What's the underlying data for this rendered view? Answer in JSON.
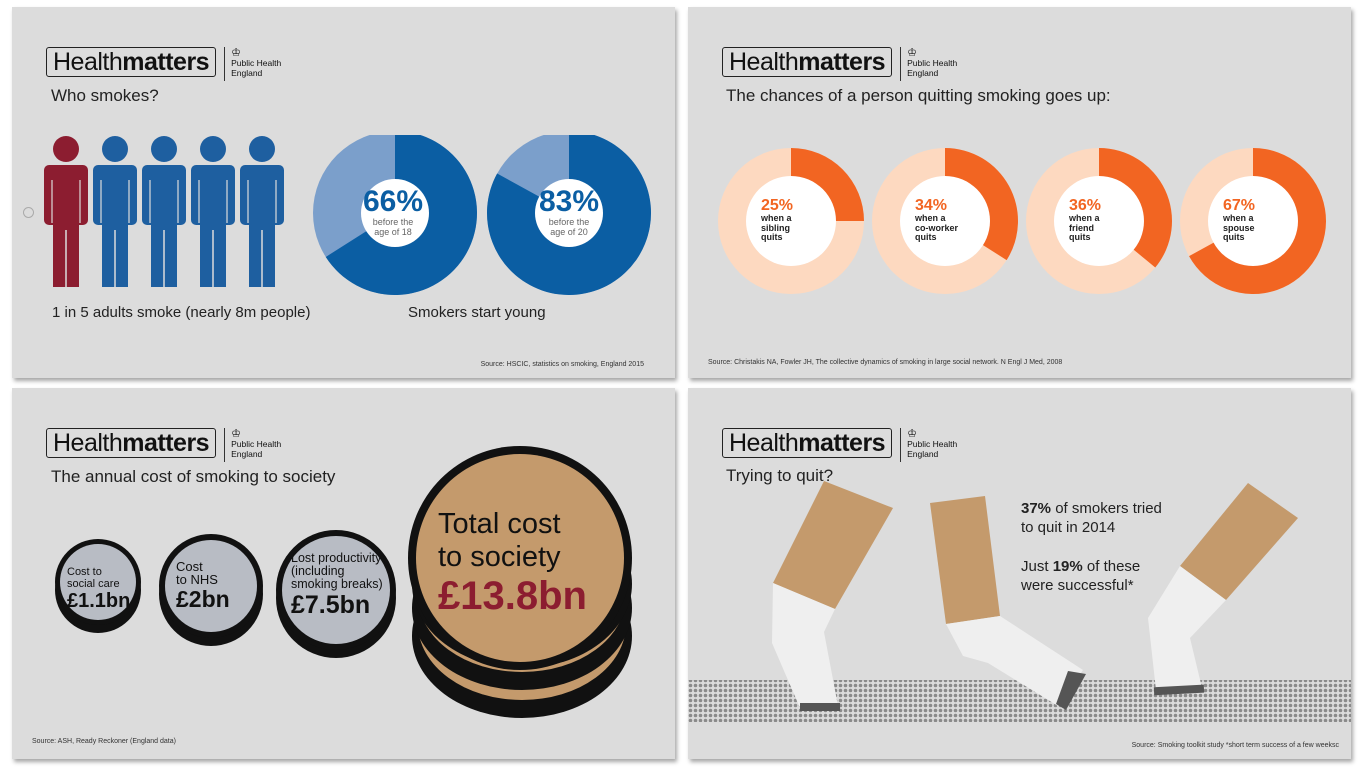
{
  "brand": {
    "health": "Health",
    "matters": "matters",
    "org_line1": "Public Health",
    "org_line2": "England",
    "crest_glyph": "♔"
  },
  "panel1": {
    "title": "Who smokes?",
    "adults_caption": "1 in 5 adults smoke (nearly 8m people)",
    "young_caption": "Smokers start young",
    "source": "Source: HSCIC, statistics on smoking, England 2015",
    "people": [
      {
        "color": "#8c1d30",
        "smoker": true
      },
      {
        "color": "#1e5fa0",
        "smoker": false
      },
      {
        "color": "#1e5fa0",
        "smoker": false
      },
      {
        "color": "#1e5fa0",
        "smoker": false
      },
      {
        "color": "#1e5fa0",
        "smoker": false
      }
    ],
    "donuts": [
      {
        "value": 66,
        "pct": "66%",
        "line1": "before the",
        "line2": "age of 18"
      },
      {
        "value": 83,
        "pct": "83%",
        "line1": "before the",
        "line2": "age of 20"
      }
    ],
    "colors": {
      "dark": "#0b5ea3",
      "light": "#7b9fcb"
    }
  },
  "panel2": {
    "title": "The chances of a person quitting smoking goes up:",
    "source": "Source: Christakis NA, Fowler JH, The collective dynamics of smoking in large social network. N Engl J Med, 2008",
    "colors": {
      "dark": "#f26522",
      "light": "#fdd9c0"
    },
    "donuts": [
      {
        "value": 25,
        "pct": "25%",
        "line1": "when a",
        "line2": "sibling",
        "line3": "quits"
      },
      {
        "value": 34,
        "pct": "34%",
        "line1": "when a",
        "line2": "co-worker",
        "line3": "quits"
      },
      {
        "value": 36,
        "pct": "36%",
        "line1": "when a",
        "line2": "friend",
        "line3": "quits"
      },
      {
        "value": 67,
        "pct": "67%",
        "line1": "when a",
        "line2": "spouse",
        "line3": "quits"
      }
    ]
  },
  "panel3": {
    "title": "The annual cost of smoking to society",
    "source": "Source: ASH, Ready Reckoner (England data)",
    "coins": [
      {
        "line1": "Cost to",
        "line2": "social care",
        "amount": "£1.1bn"
      },
      {
        "line1": "Cost",
        "line2": "to NHS",
        "amount": "£2bn"
      },
      {
        "line1": "Lost productivity",
        "line2": "(including",
        "line3": "smoking breaks)",
        "amount": "£7.5bn"
      }
    ],
    "total": {
      "line1": "Total cost",
      "line2": "to society",
      "amount": "£13.8bn"
    },
    "colors": {
      "coin": "#b8bcc4",
      "gold": "#c49a6c",
      "amount_red": "#8c1d30"
    }
  },
  "panel4": {
    "title": "Trying to quit?",
    "stat1_bold": "37%",
    "stat1_rest": " of smokers tried",
    "stat1_line2": "to quit in 2014",
    "stat2_pre": "Just ",
    "stat2_bold": "19%",
    "stat2_rest": " of these",
    "stat2_line2": "were successful*",
    "source": "Source: Smoking toolkit study *short term success of a few weeksc",
    "colors": {
      "filter": "#c49a6c",
      "paper": "#f0f0f0",
      "ash": "#555555"
    }
  }
}
